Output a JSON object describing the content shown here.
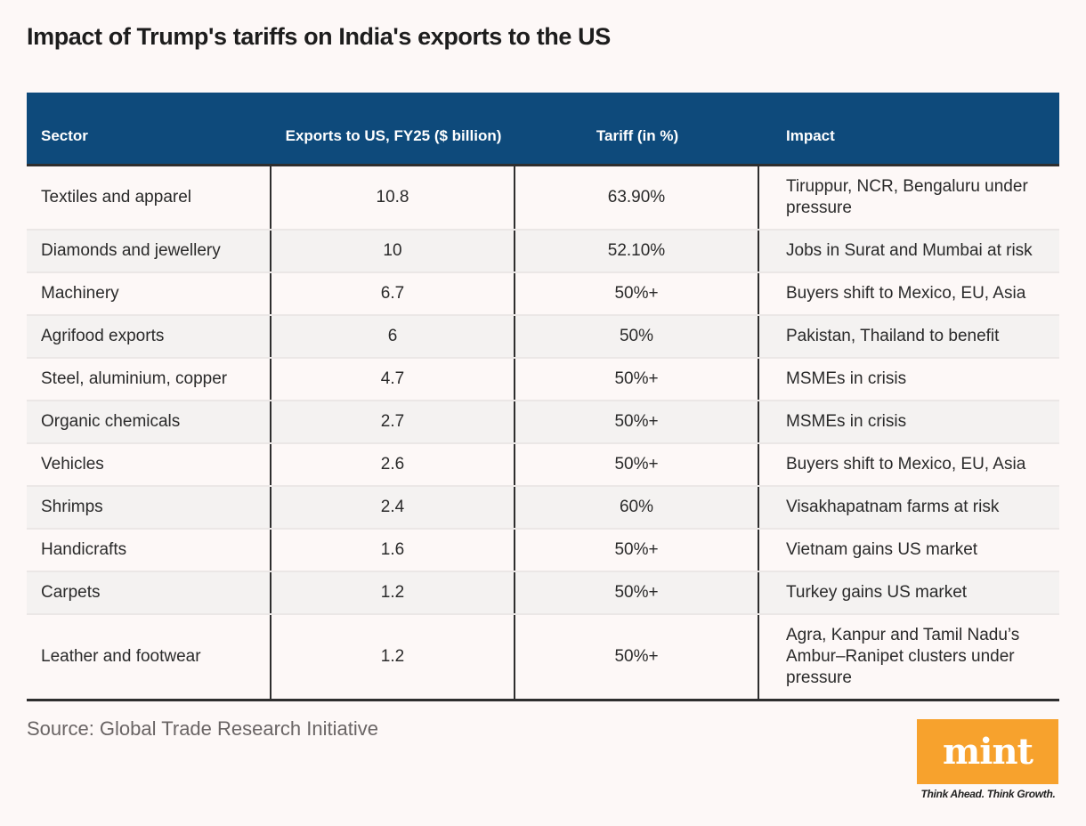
{
  "title": "Impact of Trump's tariffs on India's exports to the US",
  "chart_data": {
    "type": "table",
    "title": "Impact of Trump's tariffs on India's exports to the US",
    "columns": [
      "Sector",
      "Exports to US, FY25 ($ billion)",
      "Tariff (in %)",
      "Impact"
    ],
    "rows": [
      {
        "sector": "Textiles and apparel",
        "exports": "10.8",
        "tariff": "63.90%",
        "impact": "Tiruppur, NCR, Bengaluru under pressure"
      },
      {
        "sector": "Diamonds and jewellery",
        "exports": "10",
        "tariff": "52.10%",
        "impact": "Jobs in Surat and Mumbai at risk"
      },
      {
        "sector": "Machinery",
        "exports": "6.7",
        "tariff": "50%+",
        "impact": "Buyers shift to Mexico, EU, Asia"
      },
      {
        "sector": "Agrifood exports",
        "exports": "6",
        "tariff": "50%",
        "impact": "Pakistan, Thailand to benefit"
      },
      {
        "sector": "Steel, aluminium, copper",
        "exports": "4.7",
        "tariff": "50%+",
        "impact": "MSMEs in crisis"
      },
      {
        "sector": "Organic chemicals",
        "exports": "2.7",
        "tariff": "50%+",
        "impact": "MSMEs in crisis"
      },
      {
        "sector": "Vehicles",
        "exports": "2.6",
        "tariff": "50%+",
        "impact": "Buyers shift to Mexico, EU, Asia"
      },
      {
        "sector": "Shrimps",
        "exports": "2.4",
        "tariff": "60%",
        "impact": "Visakhapatnam farms at risk"
      },
      {
        "sector": "Handicrafts",
        "exports": "1.6",
        "tariff": "50%+",
        "impact": "Vietnam gains US market"
      },
      {
        "sector": "Carpets",
        "exports": "1.2",
        "tariff": "50%+",
        "impact": "Turkey gains US market"
      },
      {
        "sector": "Leather and footwear",
        "exports": "1.2",
        "tariff": "50%+",
        "impact": "Agra, Kanpur and Tamil Nadu’s Ambur–Ranipet clusters under pressure"
      }
    ]
  },
  "source": "Source: Global Trade Research Initiative",
  "logo": {
    "text": "mint",
    "tagline": "Think Ahead. Think Growth.",
    "color": "#f7a22d"
  },
  "colors": {
    "header_bg": "#0e4a7b",
    "background": "#fdf8f7",
    "alt_row": "#f4f2f1"
  }
}
